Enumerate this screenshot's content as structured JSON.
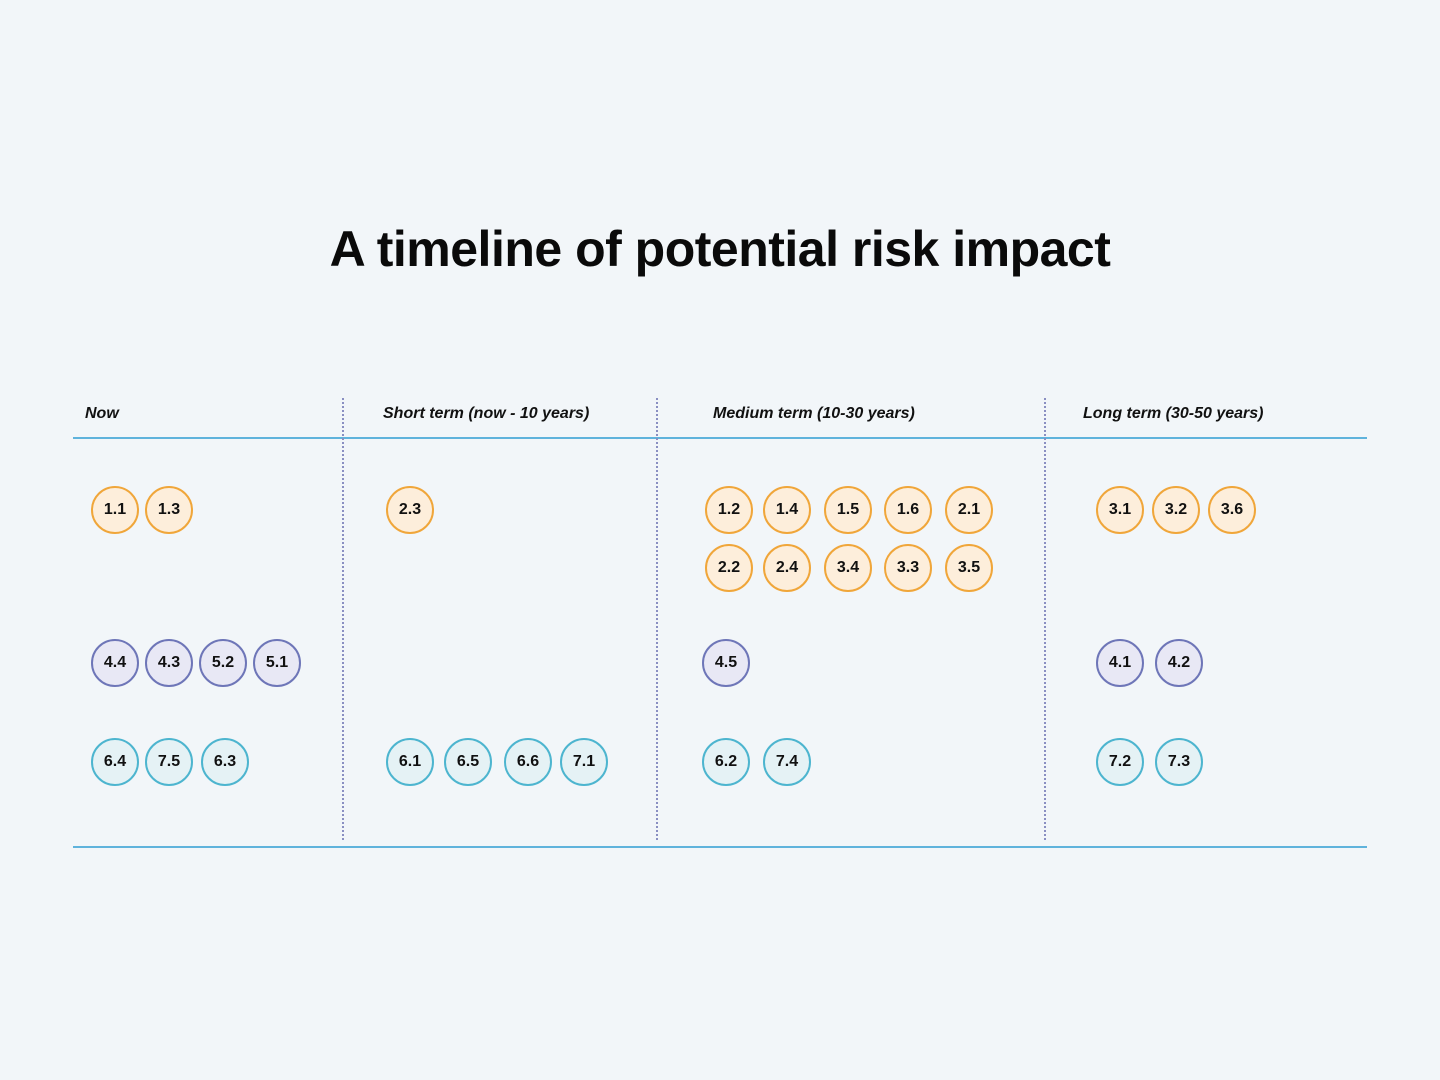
{
  "title": "A timeline of potential risk impact",
  "colors": {
    "background": "#f2f6f9",
    "axis_line": "#5fb3dc",
    "divider": "#8a8fc2",
    "orange_border": "#f0a63a",
    "orange_fill": "#fdeedb",
    "purple_border": "#6e76b8",
    "purple_fill": "#e8e8f5",
    "teal_border": "#4db5cf",
    "teal_fill": "#e5f2f5"
  },
  "columns": [
    {
      "label": "Now"
    },
    {
      "label": "Short term (now - 10 years)"
    },
    {
      "label": "Medium term (10-30 years)"
    },
    {
      "label": "Long term (30-50 years)"
    }
  ],
  "groups": {
    "orange": {
      "now": [
        "1.1",
        "1.3"
      ],
      "short": [
        "2.3"
      ],
      "medium": [
        "1.2",
        "1.4",
        "1.5",
        "1.6",
        "2.1",
        "2.2",
        "2.4",
        "3.4",
        "3.3",
        "3.5"
      ],
      "long": [
        "3.1",
        "3.2",
        "3.6"
      ]
    },
    "purple": {
      "now": [
        "4.4",
        "4.3",
        "5.2",
        "5.1"
      ],
      "short": [],
      "medium": [
        "4.5"
      ],
      "long": [
        "4.1",
        "4.2"
      ]
    },
    "teal": {
      "now": [
        "6.4",
        "7.5",
        "6.3"
      ],
      "short": [
        "6.1",
        "6.5",
        "6.6",
        "7.1"
      ],
      "medium": [
        "6.2",
        "7.4"
      ],
      "long": [
        "7.2",
        "7.3"
      ]
    }
  }
}
